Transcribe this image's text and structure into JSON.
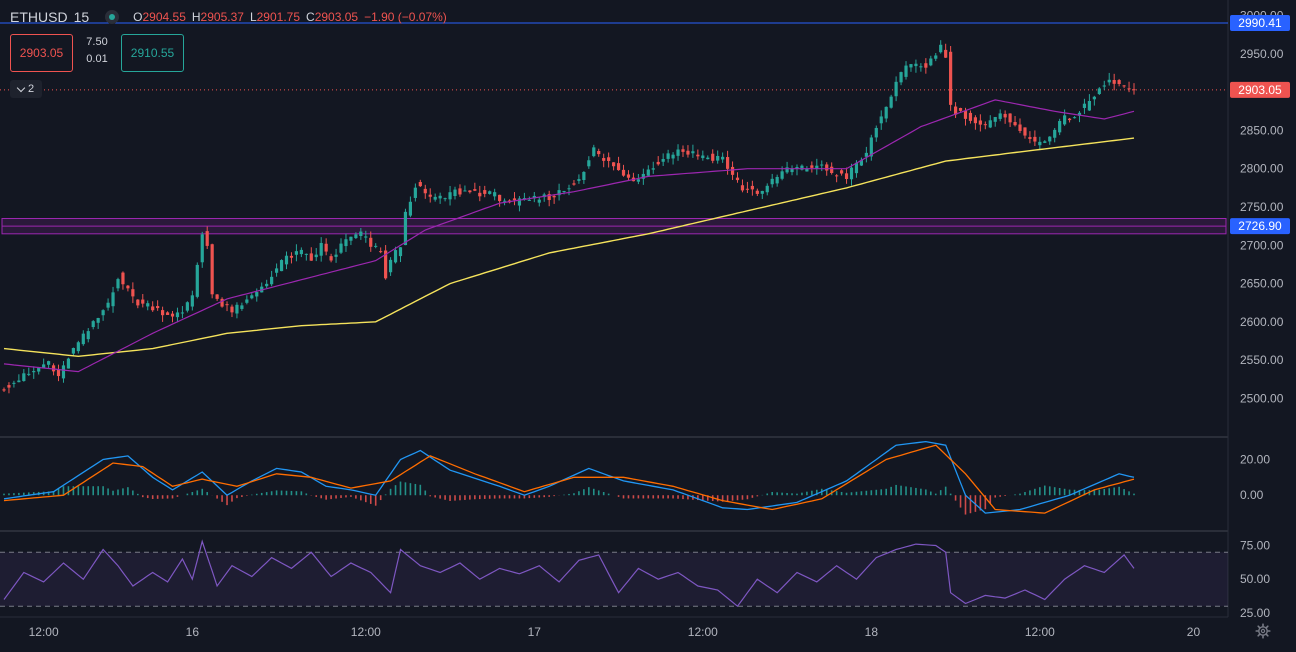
{
  "header": {
    "symbol": "ETHUSD",
    "interval": "15",
    "ohlc": [
      {
        "k": "O",
        "v": "2904.55"
      },
      {
        "k": "H",
        "v": "2905.37"
      },
      {
        "k": "L",
        "v": "2901.75"
      },
      {
        "k": "C",
        "v": "2903.05"
      },
      {
        "k": "",
        "v": "−1.90 (−0.07%)"
      }
    ]
  },
  "trade": {
    "sell": "2903.05",
    "buy": "2910.55",
    "spread_top": "7.50",
    "spread_bottom": "0.01"
  },
  "indicators_toggle": {
    "count": "2"
  },
  "colors": {
    "bg": "#131722",
    "up": "#26a69a",
    "down": "#ef5350",
    "ma_fast": "#9c27b0",
    "ma_slow": "#f5e35c",
    "macd": "#2196f3",
    "signal": "#ff6d00",
    "rsi": "#7e57c2",
    "hline": "#2962ff",
    "zone": "#9c27b0"
  },
  "chart_data": [
    {
      "type": "candlestick",
      "symbol": "ETHUSD",
      "interval": "15",
      "ylim": [
        2460,
        3010
      ],
      "y_ticks": [
        2500,
        2550,
        2600,
        2650,
        2700,
        2750,
        2800,
        2850,
        2900,
        2950,
        3000
      ],
      "y_tick_labels": [
        "2500.00",
        "2550.00",
        "2600.00",
        "2650.00",
        "2700.00",
        "2750.00",
        "2800.00",
        "2850.00",
        "2900.00",
        "2950.00",
        "3000.00"
      ],
      "x_tick_labels": [
        "12:00",
        "16",
        "12:00",
        "17",
        "12:00",
        "18",
        "12:00",
        "20",
        "12:00"
      ],
      "price_path": [
        [
          0,
          2515
        ],
        [
          3,
          2525
        ],
        [
          6,
          2535
        ],
        [
          9,
          2548
        ],
        [
          11,
          2525
        ],
        [
          13,
          2555
        ],
        [
          16,
          2580
        ],
        [
          19,
          2605
        ],
        [
          21,
          2625
        ],
        [
          23,
          2660
        ],
        [
          25,
          2640
        ],
        [
          27,
          2625
        ],
        [
          30,
          2620
        ],
        [
          33,
          2610
        ],
        [
          36,
          2610
        ],
        [
          38,
          2635
        ],
        [
          40,
          2715
        ],
        [
          41,
          2700
        ],
        [
          42,
          2640
        ],
        [
          44,
          2620
        ],
        [
          46,
          2615
        ],
        [
          48,
          2620
        ],
        [
          51,
          2640
        ],
        [
          54,
          2660
        ],
        [
          57,
          2685
        ],
        [
          60,
          2690
        ],
        [
          62,
          2680
        ],
        [
          64,
          2700
        ],
        [
          66,
          2680
        ],
        [
          68,
          2700
        ],
        [
          70,
          2710
        ],
        [
          72,
          2715
        ],
        [
          74,
          2700
        ],
        [
          76,
          2690
        ],
        [
          77,
          2660
        ],
        [
          78,
          2680
        ],
        [
          80,
          2700
        ],
        [
          81,
          2740
        ],
        [
          83,
          2780
        ],
        [
          85,
          2765
        ],
        [
          88,
          2760
        ],
        [
          91,
          2770
        ],
        [
          95,
          2770
        ],
        [
          99,
          2765
        ],
        [
          103,
          2755
        ],
        [
          107,
          2760
        ],
        [
          111,
          2765
        ],
        [
          115,
          2780
        ],
        [
          117,
          2800
        ],
        [
          119,
          2825
        ],
        [
          121,
          2810
        ],
        [
          123,
          2805
        ],
        [
          125,
          2790
        ],
        [
          127,
          2785
        ],
        [
          130,
          2800
        ],
        [
          133,
          2815
        ],
        [
          136,
          2825
        ],
        [
          139,
          2820
        ],
        [
          142,
          2815
        ],
        [
          145,
          2815
        ],
        [
          147,
          2790
        ],
        [
          149,
          2775
        ],
        [
          152,
          2770
        ],
        [
          154,
          2775
        ],
        [
          156,
          2790
        ],
        [
          158,
          2800
        ],
        [
          161,
          2800
        ],
        [
          164,
          2805
        ],
        [
          167,
          2795
        ],
        [
          170,
          2790
        ],
        [
          172,
          2805
        ],
        [
          174,
          2820
        ],
        [
          176,
          2855
        ],
        [
          178,
          2880
        ],
        [
          180,
          2915
        ],
        [
          182,
          2930
        ],
        [
          184,
          2935
        ],
        [
          186,
          2935
        ],
        [
          188,
          2950
        ],
        [
          189,
          2960
        ],
        [
          190,
          2950
        ],
        [
          191,
          2880
        ],
        [
          192,
          2875
        ],
        [
          194,
          2870
        ],
        [
          196,
          2860
        ],
        [
          198,
          2855
        ],
        [
          200,
          2865
        ],
        [
          202,
          2870
        ],
        [
          204,
          2860
        ],
        [
          206,
          2840
        ],
        [
          208,
          2835
        ],
        [
          210,
          2840
        ],
        [
          212,
          2850
        ],
        [
          214,
          2865
        ],
        [
          216,
          2870
        ],
        [
          218,
          2880
        ],
        [
          220,
          2895
        ],
        [
          222,
          2910
        ],
        [
          224,
          2915
        ],
        [
          226,
          2905
        ],
        [
          228,
          2903
        ]
      ],
      "ma_slow": {
        "color": "#f5e35c",
        "points": [
          [
            0,
            2565
          ],
          [
            15,
            2555
          ],
          [
            30,
            2565
          ],
          [
            45,
            2585
          ],
          [
            60,
            2595
          ],
          [
            75,
            2600
          ],
          [
            90,
            2650
          ],
          [
            110,
            2690
          ],
          [
            130,
            2715
          ],
          [
            150,
            2745
          ],
          [
            170,
            2775
          ],
          [
            190,
            2810
          ],
          [
            205,
            2822
          ],
          [
            228,
            2840
          ]
        ]
      },
      "ma_fast": {
        "color": "#9c27b0",
        "points": [
          [
            0,
            2545
          ],
          [
            15,
            2535
          ],
          [
            30,
            2585
          ],
          [
            45,
            2630
          ],
          [
            60,
            2655
          ],
          [
            75,
            2680
          ],
          [
            85,
            2720
          ],
          [
            100,
            2755
          ],
          [
            115,
            2770
          ],
          [
            130,
            2790
          ],
          [
            150,
            2800
          ],
          [
            170,
            2800
          ],
          [
            185,
            2855
          ],
          [
            200,
            2890
          ],
          [
            212,
            2875
          ],
          [
            222,
            2865
          ],
          [
            228,
            2875
          ]
        ]
      },
      "hlines": [
        {
          "value": 2990.41,
          "label": "2990.41",
          "color": "#2962ff"
        },
        {
          "value": 2903.05,
          "label": "2903.05",
          "color": "#ef5350",
          "dotted": true
        }
      ],
      "zone": {
        "from": 2715,
        "to": 2735,
        "label": "2726.90"
      }
    },
    {
      "type": "macd",
      "ylim": [
        -20,
        32
      ],
      "y_tick_labels": [
        "20.00",
        "0.00"
      ],
      "y_ticks": [
        20,
        0
      ],
      "macd_path": [
        [
          0,
          -2
        ],
        [
          10,
          2
        ],
        [
          20,
          20
        ],
        [
          25,
          22
        ],
        [
          30,
          10
        ],
        [
          34,
          3
        ],
        [
          40,
          13
        ],
        [
          45,
          0
        ],
        [
          50,
          8
        ],
        [
          55,
          15
        ],
        [
          60,
          13
        ],
        [
          65,
          5
        ],
        [
          70,
          3
        ],
        [
          75,
          0
        ],
        [
          80,
          20
        ],
        [
          84,
          25
        ],
        [
          90,
          14
        ],
        [
          100,
          5
        ],
        [
          105,
          0
        ],
        [
          110,
          5
        ],
        [
          118,
          15
        ],
        [
          125,
          8
        ],
        [
          135,
          3
        ],
        [
          145,
          -7
        ],
        [
          150,
          -8
        ],
        [
          160,
          -4
        ],
        [
          170,
          8
        ],
        [
          180,
          28
        ],
        [
          186,
          30
        ],
        [
          190,
          28
        ],
        [
          194,
          0
        ],
        [
          198,
          -10
        ],
        [
          205,
          -8
        ],
        [
          215,
          0
        ],
        [
          225,
          12
        ],
        [
          228,
          10
        ]
      ],
      "signal_path": [
        [
          0,
          -3
        ],
        [
          12,
          0
        ],
        [
          22,
          18
        ],
        [
          28,
          16
        ],
        [
          34,
          5
        ],
        [
          40,
          9
        ],
        [
          47,
          5
        ],
        [
          55,
          12
        ],
        [
          62,
          10
        ],
        [
          70,
          4
        ],
        [
          78,
          8
        ],
        [
          86,
          22
        ],
        [
          95,
          12
        ],
        [
          105,
          2
        ],
        [
          115,
          10
        ],
        [
          125,
          10
        ],
        [
          135,
          5
        ],
        [
          145,
          -3
        ],
        [
          155,
          -8
        ],
        [
          165,
          -2
        ],
        [
          178,
          20
        ],
        [
          188,
          28
        ],
        [
          194,
          12
        ],
        [
          200,
          -8
        ],
        [
          210,
          -10
        ],
        [
          220,
          3
        ],
        [
          228,
          9
        ]
      ]
    },
    {
      "type": "rsi",
      "ylim": [
        22,
        85
      ],
      "y_tick_labels": [
        "75.00",
        "50.00",
        "25.00"
      ],
      "y_ticks": [
        75,
        50,
        25
      ],
      "bands": [
        70,
        30
      ],
      "rsi_path": [
        [
          0,
          35
        ],
        [
          4,
          55
        ],
        [
          8,
          48
        ],
        [
          12,
          62
        ],
        [
          16,
          50
        ],
        [
          20,
          72
        ],
        [
          23,
          60
        ],
        [
          26,
          45
        ],
        [
          30,
          55
        ],
        [
          33,
          48
        ],
        [
          36,
          65
        ],
        [
          38,
          50
        ],
        [
          40,
          78
        ],
        [
          43,
          45
        ],
        [
          46,
          60
        ],
        [
          50,
          52
        ],
        [
          54,
          66
        ],
        [
          58,
          58
        ],
        [
          62,
          70
        ],
        [
          66,
          52
        ],
        [
          70,
          62
        ],
        [
          74,
          55
        ],
        [
          78,
          40
        ],
        [
          80,
          72
        ],
        [
          84,
          60
        ],
        [
          88,
          55
        ],
        [
          92,
          62
        ],
        [
          96,
          50
        ],
        [
          100,
          58
        ],
        [
          104,
          54
        ],
        [
          108,
          60
        ],
        [
          112,
          48
        ],
        [
          116,
          64
        ],
        [
          120,
          68
        ],
        [
          124,
          40
        ],
        [
          128,
          58
        ],
        [
          132,
          50
        ],
        [
          136,
          55
        ],
        [
          140,
          45
        ],
        [
          144,
          42
        ],
        [
          148,
          30
        ],
        [
          152,
          50
        ],
        [
          156,
          40
        ],
        [
          160,
          55
        ],
        [
          164,
          48
        ],
        [
          168,
          60
        ],
        [
          172,
          50
        ],
        [
          176,
          66
        ],
        [
          180,
          72
        ],
        [
          184,
          76
        ],
        [
          188,
          75
        ],
        [
          190,
          70
        ],
        [
          191,
          40
        ],
        [
          194,
          32
        ],
        [
          198,
          38
        ],
        [
          202,
          36
        ],
        [
          206,
          42
        ],
        [
          210,
          35
        ],
        [
          214,
          50
        ],
        [
          218,
          60
        ],
        [
          222,
          55
        ],
        [
          226,
          68
        ],
        [
          228,
          58
        ]
      ]
    }
  ]
}
